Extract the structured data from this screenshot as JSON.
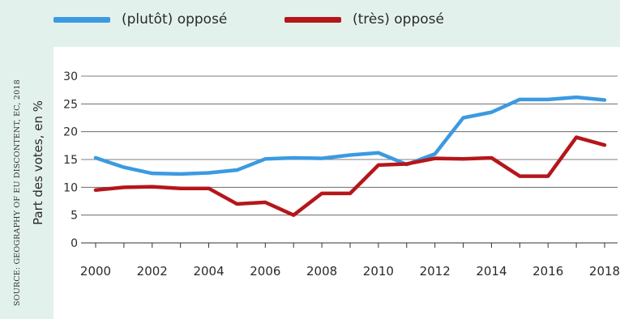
{
  "source_note": "SOURCE: GEOGRAPHY OF EU DISCONTENT, EC, 2018",
  "chart_data": {
    "type": "line",
    "xlabel": "",
    "ylabel": "Part des votes, en %",
    "x": [
      2000,
      2001,
      2002,
      2003,
      2004,
      2005,
      2006,
      2007,
      2008,
      2009,
      2010,
      2011,
      2012,
      2013,
      2014,
      2015,
      2016,
      2017,
      2018
    ],
    "x_ticks": [
      "2000",
      "2002",
      "2004",
      "2006",
      "2008",
      "2010",
      "2012",
      "2014",
      "2016",
      "2018"
    ],
    "y_ticks": [
      "0",
      "5",
      "10",
      "15",
      "20",
      "25",
      "30"
    ],
    "ylim": [
      0,
      30
    ],
    "grid": "horizontal",
    "legend_position": "top",
    "series": [
      {
        "name": "(plutôt) opposé",
        "color": "#3b9ae1",
        "values": [
          15.3,
          13.6,
          12.5,
          12.4,
          12.6,
          13.1,
          15.1,
          15.3,
          15.2,
          15.8,
          16.2,
          14.1,
          16.0,
          22.5,
          23.5,
          25.8,
          25.8,
          26.2,
          25.7
        ]
      },
      {
        "name": "(très) opposé",
        "color": "#b5161b",
        "values": [
          9.5,
          10.0,
          10.1,
          9.8,
          9.8,
          7.0,
          7.3,
          5.0,
          8.9,
          8.9,
          14.0,
          14.2,
          15.2,
          15.1,
          15.3,
          12.0,
          12.0,
          19.0,
          17.6
        ]
      }
    ]
  }
}
